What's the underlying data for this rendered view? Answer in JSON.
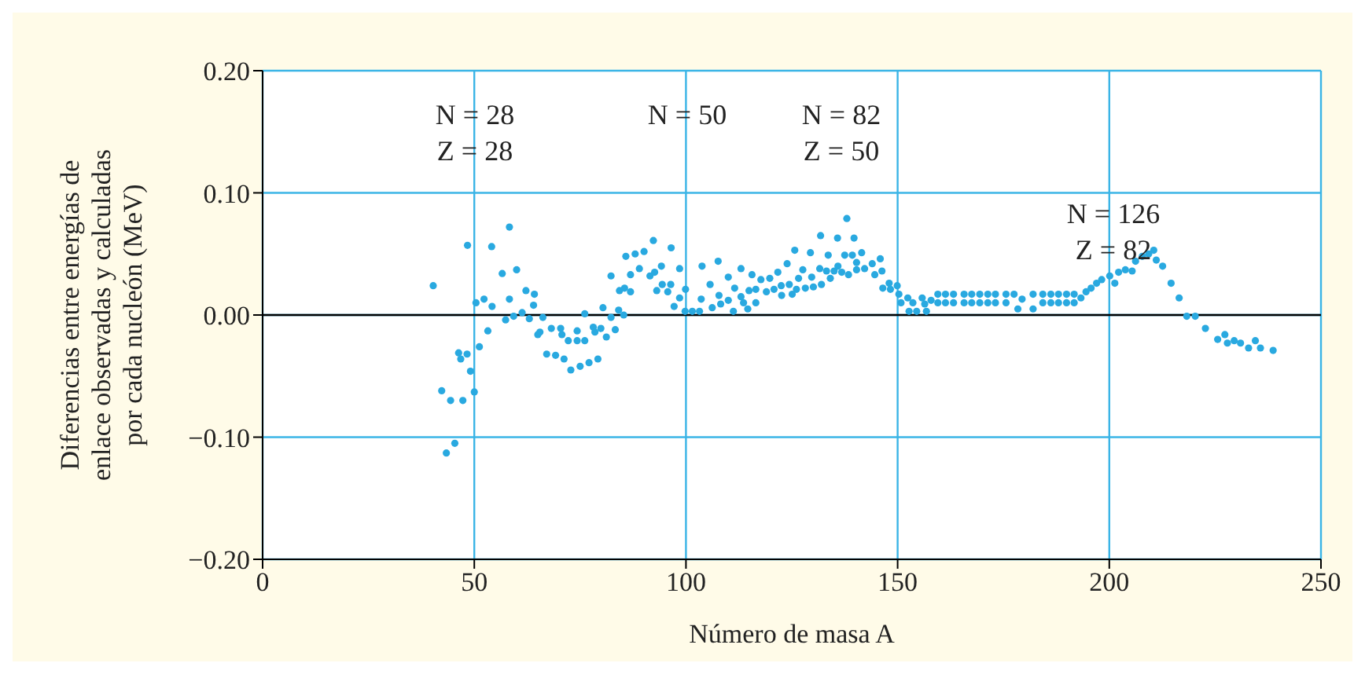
{
  "chart_data": {
    "type": "scatter",
    "xlabel": "Número de masa A",
    "ylabel": "Diferencias entre energías de\nenlace observadas y calculadas\npor cada nucleón (MeV)",
    "xlim": [
      0,
      250
    ],
    "xticks": [
      0,
      50,
      100,
      150,
      200,
      250
    ],
    "ylim": [
      -0.2,
      0.2
    ],
    "yticks": [
      {
        "value": -0.2,
        "label": "−0.20"
      },
      {
        "value": -0.1,
        "label": "−0.10"
      },
      {
        "value": 0,
        "label": "0.00"
      },
      {
        "value": 0.1,
        "label": "0.10"
      },
      {
        "value": 0.2,
        "label": "0.20"
      }
    ],
    "grid": true,
    "marker": "circle",
    "legend": false,
    "ref_lines": [
      {
        "axis": "y",
        "value": 0,
        "color": "#000000"
      }
    ],
    "annotations": [
      "N = 28\nZ = 28",
      "N = 50",
      "N = 82\nZ = 50",
      "N = 126\nZ = 82"
    ],
    "series": [
      {
        "color": "#29a9e0",
        "x": [
          40.3,
          48.4,
          58.3,
          54.1,
          56.6,
          60,
          50.4,
          52.3,
          54.2,
          58.3,
          57.4,
          59.3,
          61.3,
          62.2,
          64.2,
          64,
          63,
          66.2,
          53.2,
          51.2,
          46.3,
          48.3,
          46.8,
          49.1,
          50,
          42.3,
          44.4,
          47.3,
          45.4,
          43.4,
          65.5,
          65,
          68.2,
          70.4,
          70.7,
          72.2,
          74.3,
          76.1,
          74.3,
          76.1,
          78.1,
          78.5,
          79.9,
          81.2,
          83.3,
          67.1,
          69.2,
          71.2,
          72.8,
          75,
          77.1,
          79.2,
          80.4,
          82.3,
          84.1,
          85.3,
          84.3,
          85.5,
          86.9,
          82.3,
          86.9,
          89,
          85.8,
          88,
          90.1,
          92.3,
          96.5,
          91.5,
          92.6,
          94.2,
          93.1,
          94.4,
          96.4,
          95.7,
          98.5,
          97.2,
          98.5,
          99.9,
          99.8,
          101.5,
          103.2,
          103.8,
          103.6,
          105.7,
          107.6,
          106.2,
          107.8,
          108.2,
          110,
          110,
          111.2,
          111.5,
          113,
          113,
          113.6,
          114.6,
          114.9,
          115.6,
          116.5,
          116.5,
          117.7,
          119,
          119.8,
          121.7,
          120.8,
          122.5,
          122.6,
          123.9,
          124.4,
          125.1,
          125.7,
          126.1,
          126.6,
          127.6,
          128.2,
          129.4,
          129.7,
          130.1,
          131.8,
          131.6,
          132,
          133.6,
          133.2,
          134.1,
          135,
          135.8,
          135.9,
          136.8,
          137.5,
          138,
          138.4,
          139.3,
          139.7,
          140.3,
          140.3,
          141.5,
          142.2,
          144,
          144.6,
          145.9,
          146.3,
          146.5,
          148,
          148.3,
          149.9,
          150.3,
          150.8,
          152.4,
          152.7,
          153.6,
          154.5,
          155.8,
          156.4,
          156.8,
          157.9,
          159.5,
          159.5,
          161.3,
          161.3,
          163.2,
          163.2,
          165.7,
          165.7,
          167.5,
          167.5,
          169.4,
          169.4,
          171.3,
          171.3,
          173.1,
          173.1,
          175.6,
          175.6,
          177.5,
          178.4,
          179.4,
          182,
          182,
          184.3,
          184.3,
          186.2,
          186.2,
          188,
          188,
          189.9,
          189.9,
          191.7,
          191.7,
          193.3,
          194.5,
          195.7,
          197,
          198.2,
          200.1,
          201.3,
          202.2,
          203.8,
          205.4,
          206.2,
          207.8,
          209.3,
          210.5,
          211.1,
          212.6,
          214.6,
          216.5,
          218.3,
          220.3,
          222.7,
          225.6,
          227.3,
          227.9,
          229.5,
          231,
          232.9,
          234.5,
          235.7,
          238.7
        ],
        "values": [
          0.024,
          0.057,
          0.072,
          0.056,
          0.034,
          0.037,
          0.01,
          0.013,
          0.007,
          0.013,
          -0.004,
          -0.001,
          0.002,
          0.02,
          0.017,
          0.008,
          -0.003,
          -0.002,
          -0.013,
          -0.026,
          -0.031,
          -0.032,
          -0.036,
          -0.046,
          -0.063,
          -0.062,
          -0.07,
          -0.07,
          -0.105,
          -0.113,
          -0.014,
          -0.016,
          -0.011,
          -0.011,
          -0.016,
          -0.021,
          -0.021,
          -0.021,
          -0.013,
          0.001,
          -0.01,
          -0.014,
          -0.011,
          -0.018,
          -0.012,
          -0.032,
          -0.033,
          -0.036,
          -0.045,
          -0.042,
          -0.039,
          -0.036,
          0.006,
          -0.002,
          0.004,
          0,
          0.02,
          0.022,
          0.019,
          0.032,
          0.033,
          0.038,
          0.048,
          0.05,
          0.052,
          0.061,
          0.055,
          0.032,
          0.035,
          0.04,
          0.02,
          0.025,
          0.025,
          0.019,
          0.038,
          0.007,
          0.014,
          0.021,
          0.003,
          0.003,
          0.003,
          0.04,
          0.013,
          0.025,
          0.044,
          0.006,
          0.016,
          0.009,
          0.012,
          0.031,
          0.003,
          0.022,
          0.038,
          0.015,
          0.01,
          0.005,
          0.02,
          0.033,
          0.01,
          0.021,
          0.029,
          0.019,
          0.03,
          0.035,
          0.021,
          0.024,
          0.016,
          0.042,
          0.025,
          0.017,
          0.053,
          0.021,
          0.03,
          0.037,
          0.022,
          0.051,
          0.031,
          0.023,
          0.065,
          0.038,
          0.025,
          0.049,
          0.036,
          0.03,
          0.036,
          0.063,
          0.04,
          0.035,
          0.049,
          0.079,
          0.033,
          0.049,
          0.063,
          0.043,
          0.037,
          0.051,
          0.038,
          0.042,
          0.033,
          0.046,
          0.036,
          0.022,
          0.026,
          0.021,
          0.024,
          0.017,
          0.01,
          0.014,
          0.003,
          0.01,
          0.003,
          0.014,
          0.009,
          0.003,
          0.012,
          0.017,
          0.01,
          0.017,
          0.01,
          0.017,
          0.01,
          0.017,
          0.01,
          0.017,
          0.01,
          0.017,
          0.01,
          0.017,
          0.01,
          0.017,
          0.01,
          0.017,
          0.01,
          0.017,
          0.005,
          0.013,
          0.017,
          0.005,
          0.017,
          0.01,
          0.017,
          0.01,
          0.017,
          0.01,
          0.017,
          0.01,
          0.017,
          0.01,
          0.014,
          0.019,
          0.022,
          0.026,
          0.029,
          0.032,
          0.026,
          0.035,
          0.037,
          0.036,
          0.044,
          0.048,
          0.05,
          0.053,
          0.045,
          0.04,
          0.026,
          0.014,
          -0.001,
          -0.001,
          -0.011,
          -0.02,
          -0.016,
          -0.023,
          -0.021,
          -0.023,
          -0.027,
          -0.021,
          -0.027,
          -0.029
        ]
      }
    ]
  }
}
